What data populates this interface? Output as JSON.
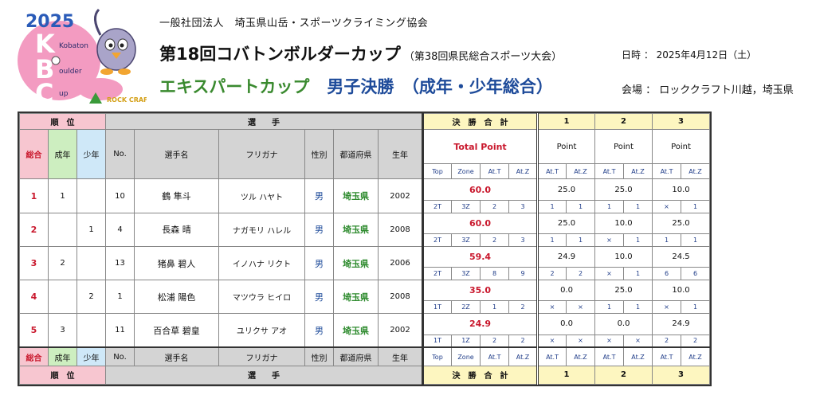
{
  "logo": {
    "year": "2025",
    "initials": [
      "K",
      "B",
      "C"
    ],
    "words": [
      "Kobaton",
      "oulder",
      "up"
    ],
    "sponsor": "ROCK CRAFT"
  },
  "header": {
    "org": "一般社団法人　埼玉県山岳・スポーツクライミング協会",
    "title": "第18回コバトンボルダーカップ",
    "title_sub": "（第38回県民総合スポーツ大会）",
    "cup": "エキスパートカップ",
    "category": "男子決勝　（成年・少年総合）",
    "date": "日時 ： 2025年4月12日（土）",
    "venue": "会場 ： ロッククラフト川越，埼玉県"
  },
  "table": {
    "group_rank": "順　位",
    "group_athlete": "選　　手",
    "group_total": "決　勝　合　計",
    "problems": [
      "1",
      "2",
      "3"
    ],
    "col_overall": "総合",
    "col_adult": "成年",
    "col_youth": "少年",
    "col_no": "No.",
    "col_name": "選手名",
    "col_kana": "フリガナ",
    "col_sex": "性別",
    "col_pref": "都道府県",
    "col_year": "生年",
    "total_point": "Total Point",
    "point": "Point",
    "sub_top": "Top",
    "sub_zone": "Zone",
    "sub_att_top": "At.T",
    "sub_att_zone": "At.Z"
  },
  "athletes": [
    {
      "overall": "1",
      "adult": "1",
      "youth": "",
      "no": "10",
      "name": "鶴 隼斗",
      "kana": "ツル ハヤト",
      "sex": "男",
      "pref": "埼玉県",
      "year": "2002",
      "total": "60.0",
      "top": "2T",
      "zone": "3Z",
      "att": "2",
      "atz": "3",
      "p": [
        {
          "pt": "25.0",
          "t": "1",
          "z": "1"
        },
        {
          "pt": "25.0",
          "t": "1",
          "z": "1"
        },
        {
          "pt": "10.0",
          "t": "×",
          "z": "1"
        }
      ]
    },
    {
      "overall": "2",
      "adult": "",
      "youth": "1",
      "no": "4",
      "name": "長森 晴",
      "kana": "ナガモリ ハレル",
      "sex": "男",
      "pref": "埼玉県",
      "year": "2008",
      "total": "60.0",
      "top": "2T",
      "zone": "3Z",
      "att": "2",
      "atz": "3",
      "p": [
        {
          "pt": "25.0",
          "t": "1",
          "z": "1"
        },
        {
          "pt": "10.0",
          "t": "×",
          "z": "1"
        },
        {
          "pt": "25.0",
          "t": "1",
          "z": "1"
        }
      ]
    },
    {
      "overall": "3",
      "adult": "2",
      "youth": "",
      "no": "13",
      "name": "猪鼻 碧人",
      "kana": "イノハナ リクト",
      "sex": "男",
      "pref": "埼玉県",
      "year": "2006",
      "total": "59.4",
      "top": "2T",
      "zone": "3Z",
      "att": "8",
      "atz": "9",
      "p": [
        {
          "pt": "24.9",
          "t": "2",
          "z": "2"
        },
        {
          "pt": "10.0",
          "t": "×",
          "z": "1"
        },
        {
          "pt": "24.5",
          "t": "6",
          "z": "6"
        }
      ]
    },
    {
      "overall": "4",
      "adult": "",
      "youth": "2",
      "no": "1",
      "name": "松浦 陽色",
      "kana": "マツウラ ヒイロ",
      "sex": "男",
      "pref": "埼玉県",
      "year": "2008",
      "total": "35.0",
      "top": "1T",
      "zone": "2Z",
      "att": "1",
      "atz": "2",
      "p": [
        {
          "pt": "0.0",
          "t": "×",
          "z": "×"
        },
        {
          "pt": "25.0",
          "t": "1",
          "z": "1"
        },
        {
          "pt": "10.0",
          "t": "×",
          "z": "1"
        }
      ]
    },
    {
      "overall": "5",
      "adult": "3",
      "youth": "",
      "no": "11",
      "name": "百合草 碧皇",
      "kana": "ユリクサ アオ",
      "sex": "男",
      "pref": "埼玉県",
      "year": "2002",
      "total": "24.9",
      "top": "1T",
      "zone": "1Z",
      "att": "2",
      "atz": "2",
      "p": [
        {
          "pt": "0.0",
          "t": "×",
          "z": "×"
        },
        {
          "pt": "0.0",
          "t": "×",
          "z": "×"
        },
        {
          "pt": "24.9",
          "t": "2",
          "z": "2"
        }
      ]
    }
  ],
  "colors": {
    "pink": "#f7c6d0",
    "gray": "#d4d4d4",
    "yellow": "#fdf6c0",
    "green": "#cdeec0",
    "blue": "#cfe8f8",
    "red": "#c9182d",
    "green_text": "#3a8a2f",
    "blue_text": "#1e4b9a"
  }
}
